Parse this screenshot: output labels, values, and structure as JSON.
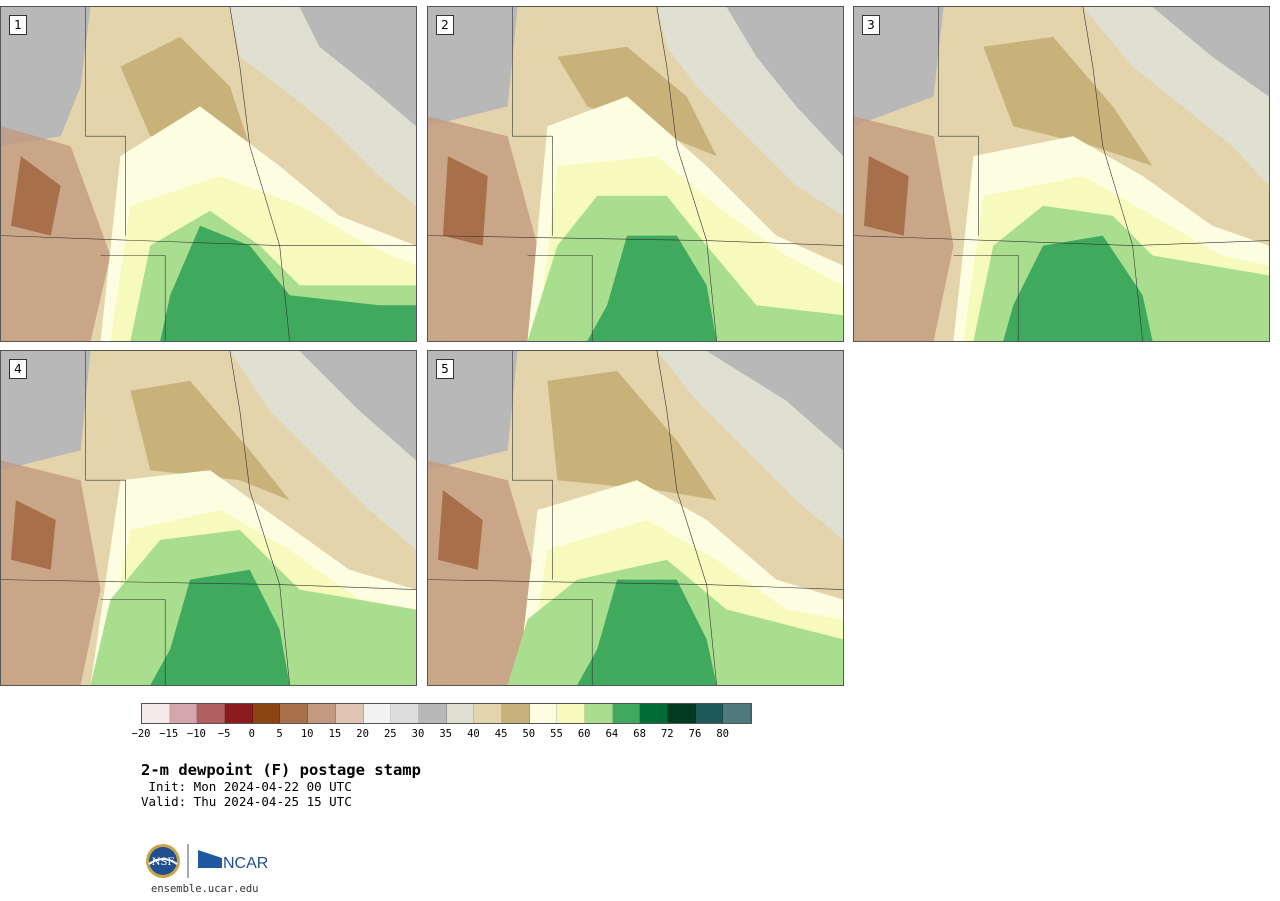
{
  "panels": [
    {
      "label": "1"
    },
    {
      "label": "2"
    },
    {
      "label": "3"
    },
    {
      "label": "4"
    },
    {
      "label": "5"
    }
  ],
  "colorbar": {
    "colors": [
      "#f5e9ea",
      "#d5a6ab",
      "#b1605f",
      "#8c1b1e",
      "#8a4512",
      "#a8704a",
      "#c39a80",
      "#dfc4b2",
      "#f2f2f2",
      "#dcdcdc",
      "#b8b8b8",
      "#dfdfd2",
      "#e3d4ac",
      "#c8b27a",
      "#fdfde2",
      "#f6fbbd",
      "#a9de8f",
      "#3fa95d",
      "#006b36",
      "#003a20",
      "#1e5959",
      "#4f7a7d"
    ],
    "ticks": [
      "−20",
      "−15",
      "−10",
      "−5",
      "0",
      "5",
      "10",
      "15",
      "20",
      "25",
      "30",
      "35",
      "40",
      "45",
      "50",
      "55",
      "60",
      "64",
      "68",
      "72",
      "76",
      "80"
    ]
  },
  "title": "2-m dewpoint (F) postage stamp",
  "init_line": " Init: Mon 2024-04-22 00 UTC",
  "valid_line": "Valid: Thu 2024-04-25 15 UTC",
  "logos": {
    "nsf": "NSF",
    "ncar": "NCAR"
  },
  "site": "ensemble.ucar.edu"
}
